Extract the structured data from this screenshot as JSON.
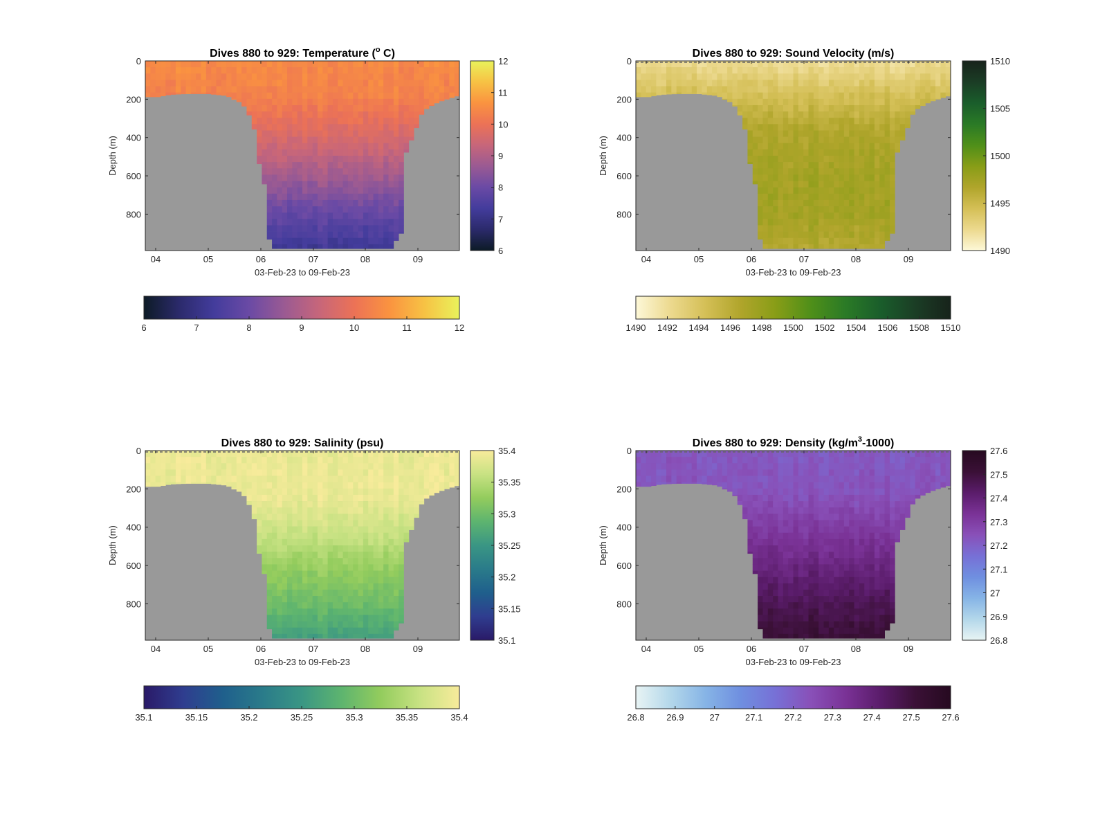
{
  "figure": {
    "background": "#ffffff",
    "landmask_color": "#999999"
  },
  "chart_data": [
    {
      "id": "temperature",
      "type": "heatmap",
      "title": "Dives 880 to 929: Temperature (° C)",
      "title_parts": {
        "pre": "Dives 880 to 929: Temperature (",
        "sup": "o",
        "post": " C)"
      },
      "xlabel": "03-Feb-23 to 09-Feb-23",
      "ylabel": "Depth (m)",
      "x_ticks": [
        "04",
        "05",
        "06",
        "07",
        "08",
        "09"
      ],
      "y_ticks": [
        "0",
        "200",
        "400",
        "600",
        "800"
      ],
      "y_reversed": true,
      "ylim": [
        0,
        990
      ],
      "clim": [
        6,
        12
      ],
      "colormap": [
        "#0d1b26",
        "#2b2a6b",
        "#433c9c",
        "#6a4aa5",
        "#9a5a93",
        "#c7667a",
        "#ec7256",
        "#fa9340",
        "#f7c244",
        "#e9f25b"
      ],
      "vertical_colorbar_ticks": [
        "6",
        "7",
        "8",
        "9",
        "10",
        "11",
        "12"
      ],
      "horizontal_colorbar_ticks": [
        "6",
        "7",
        "8",
        "9",
        "10",
        "11",
        "12"
      ],
      "profile": [
        [
          0,
          10.5
        ],
        [
          200,
          10.3
        ],
        [
          400,
          9.6
        ],
        [
          600,
          8.8
        ],
        [
          800,
          7.9
        ],
        [
          990,
          7.2
        ]
      ],
      "surface_dash": false
    },
    {
      "id": "sound-velocity",
      "type": "heatmap",
      "title": "Dives 880 to 929: Sound Velocity (m/s)",
      "title_parts": {
        "pre": "Dives 880 to 929: Sound Velocity (m/s)",
        "sup": "",
        "post": ""
      },
      "xlabel": "03-Feb-23 to 09-Feb-23",
      "ylabel": "Depth (m)",
      "x_ticks": [
        "04",
        "05",
        "06",
        "07",
        "08",
        "09"
      ],
      "y_ticks": [
        "0",
        "200",
        "400",
        "600",
        "800"
      ],
      "y_reversed": true,
      "ylim": [
        0,
        990
      ],
      "clim": [
        1490,
        1510
      ],
      "colormap": [
        "#fdf8d8",
        "#ecd98e",
        "#d4bf56",
        "#b0a52b",
        "#889d17",
        "#4f8f19",
        "#2a7a26",
        "#1a5d2b",
        "#1b3d25",
        "#17231b"
      ],
      "vertical_colorbar_ticks": [
        "1490",
        "1495",
        "1500",
        "1505",
        "1510"
      ],
      "horizontal_colorbar_ticks": [
        "1490",
        "1492",
        "1494",
        "1496",
        "1498",
        "1500",
        "1502",
        "1504",
        "1506",
        "1508",
        "1510"
      ],
      "profile": [
        [
          0,
          1492.0
        ],
        [
          150,
          1494.0
        ],
        [
          350,
          1496.5
        ],
        [
          600,
          1497.4
        ],
        [
          800,
          1497.4
        ],
        [
          990,
          1496.4
        ]
      ],
      "surface_dash": true
    },
    {
      "id": "salinity",
      "type": "heatmap",
      "title": "Dives 880 to 929: Salinity (psu)",
      "title_parts": {
        "pre": "Dives 880 to 929: Salinity (psu)",
        "sup": "",
        "post": ""
      },
      "xlabel": "03-Feb-23 to 09-Feb-23",
      "ylabel": "Depth (m)",
      "x_ticks": [
        "04",
        "05",
        "06",
        "07",
        "08",
        "09"
      ],
      "y_ticks": [
        "0",
        "200",
        "400",
        "600",
        "800"
      ],
      "y_reversed": true,
      "ylim": [
        0,
        990
      ],
      "clim": [
        35.1,
        35.4
      ],
      "colormap": [
        "#2a1a68",
        "#2f3d8f",
        "#1f5f8c",
        "#2a7b8a",
        "#3a9684",
        "#5db46f",
        "#93cc5d",
        "#c8e283",
        "#f8eb9b"
      ],
      "vertical_colorbar_ticks": [
        "35.1",
        "35.15",
        "35.2",
        "35.25",
        "35.3",
        "35.35",
        "35.4"
      ],
      "horizontal_colorbar_ticks": [
        "35.1",
        "35.15",
        "35.2",
        "35.25",
        "35.3",
        "35.35",
        "35.4"
      ],
      "profile": [
        [
          0,
          35.39
        ],
        [
          250,
          35.39
        ],
        [
          450,
          35.36
        ],
        [
          600,
          35.33
        ],
        [
          800,
          35.3
        ],
        [
          990,
          35.26
        ]
      ],
      "surface_dash": true
    },
    {
      "id": "density",
      "type": "heatmap",
      "title": "Dives 880 to 929: Density (kg/m³-1000)",
      "title_parts": {
        "pre": "Dives 880 to 929: Density (kg/m",
        "sup": "3",
        "post": "-1000)"
      },
      "xlabel": "03-Feb-23 to 09-Feb-23",
      "ylabel": "Depth (m)",
      "x_ticks": [
        "04",
        "05",
        "06",
        "07",
        "08",
        "09"
      ],
      "y_ticks": [
        "0",
        "200",
        "400",
        "600",
        "800"
      ],
      "y_reversed": true,
      "ylim": [
        0,
        990
      ],
      "clim": [
        26.8,
        27.6
      ],
      "colormap": [
        "#e8f4f4",
        "#b3d7ea",
        "#86b4e6",
        "#6f8fe0",
        "#7770d6",
        "#8950b8",
        "#7a3296",
        "#5a1c6a",
        "#3a1036",
        "#260a20"
      ],
      "vertical_colorbar_ticks": [
        "26.8",
        "26.9",
        "27",
        "27.1",
        "27.2",
        "27.3",
        "27.4",
        "27.5",
        "27.6"
      ],
      "horizontal_colorbar_ticks": [
        "26.8",
        "26.9",
        "27",
        "27.1",
        "27.2",
        "27.3",
        "27.4",
        "27.5",
        "27.6"
      ],
      "profile": [
        [
          0,
          27.22
        ],
        [
          200,
          27.23
        ],
        [
          400,
          27.3
        ],
        [
          600,
          27.38
        ],
        [
          800,
          27.46
        ],
        [
          990,
          27.52
        ]
      ],
      "surface_dash": true
    }
  ]
}
